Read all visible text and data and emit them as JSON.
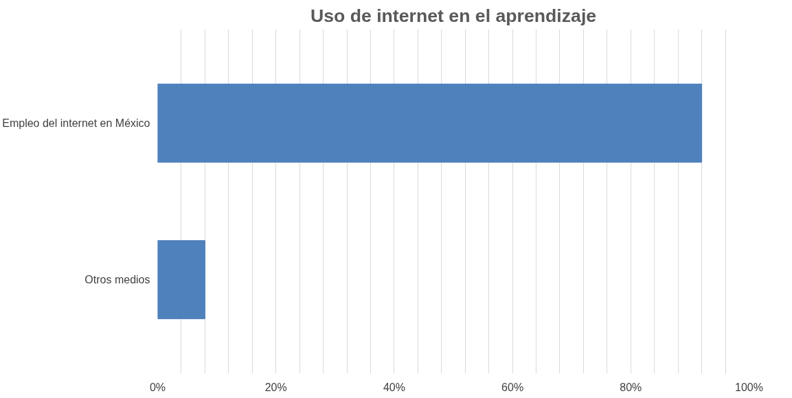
{
  "chart_data": {
    "type": "bar",
    "orientation": "horizontal",
    "title": "Uso de internet en el aprendizaje",
    "categories": [
      "Empleo del internet en México",
      "Otros medios"
    ],
    "values": [
      92,
      8
    ],
    "color": "#4f81bd",
    "xlim": [
      0,
      100
    ],
    "xticks": [
      {
        "value": 0,
        "label": "0%"
      },
      {
        "value": 4,
        "label": null
      },
      {
        "value": 8,
        "label": null
      },
      {
        "value": 12,
        "label": null
      },
      {
        "value": 16,
        "label": null
      },
      {
        "value": 20,
        "label": "20%"
      },
      {
        "value": 24,
        "label": null
      },
      {
        "value": 28,
        "label": null
      },
      {
        "value": 32,
        "label": null
      },
      {
        "value": 36,
        "label": null
      },
      {
        "value": 40,
        "label": "40%"
      },
      {
        "value": 44,
        "label": null
      },
      {
        "value": 48,
        "label": null
      },
      {
        "value": 52,
        "label": null
      },
      {
        "value": 56,
        "label": null
      },
      {
        "value": 60,
        "label": "60%"
      },
      {
        "value": 64,
        "label": null
      },
      {
        "value": 68,
        "label": null
      },
      {
        "value": 72,
        "label": null
      },
      {
        "value": 76,
        "label": null
      },
      {
        "value": 80,
        "label": "80%"
      },
      {
        "value": 84,
        "label": null
      },
      {
        "value": 88,
        "label": null
      },
      {
        "value": 92,
        "label": null
      },
      {
        "value": 96,
        "label": null
      },
      {
        "value": 100,
        "label": "100%"
      }
    ],
    "grid": "x"
  }
}
